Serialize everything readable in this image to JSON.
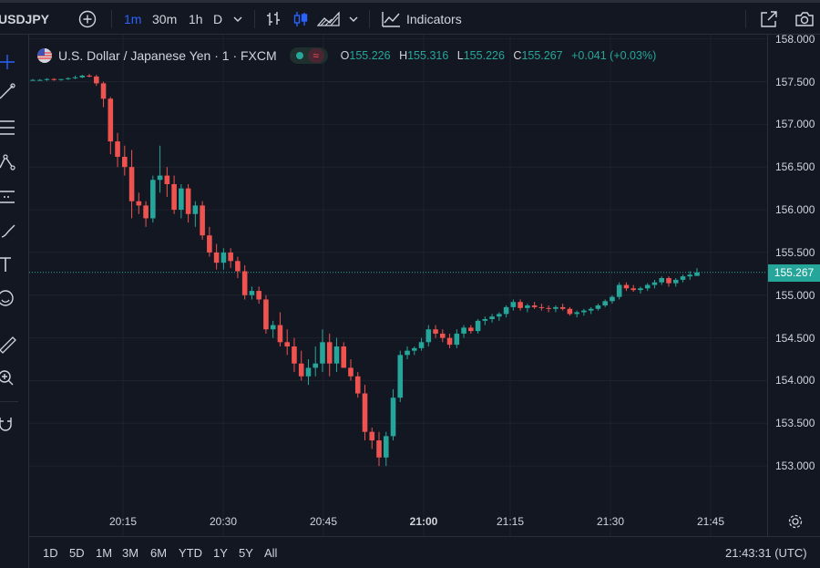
{
  "toolbar": {
    "symbol": "USDJPY",
    "intervals": [
      "1m",
      "30m",
      "1h",
      "D"
    ],
    "active_interval": "1m",
    "indicators_label": "Indicators"
  },
  "legend": {
    "title": "U.S. Dollar / Japanese Yen · 1 · FXCM",
    "open_key": "O",
    "open": "155.226",
    "high_key": "H",
    "high": "155.316",
    "low_key": "L",
    "low": "155.226",
    "close_key": "C",
    "close": "155.267",
    "change": "+0.041 (+0.03%)"
  },
  "price_axis": {
    "labels": [
      "158.000",
      "157.500",
      "157.000",
      "156.500",
      "156.000",
      "155.500",
      "155.000",
      "154.500",
      "154.000",
      "153.500",
      "153.000"
    ],
    "current_price": "155.267"
  },
  "time_axis": {
    "labels": [
      "20:15",
      "20:30",
      "20:45",
      "21:00",
      "21:15",
      "21:30",
      "21:45"
    ],
    "bold_label": "21:00"
  },
  "bottom": {
    "ranges": [
      "1D",
      "5D",
      "1M",
      "3M",
      "6M",
      "YTD",
      "1Y",
      "5Y",
      "All"
    ],
    "clock": "21:43:31 (UTC)"
  },
  "colors": {
    "up": "#26a69a",
    "down": "#ef5350",
    "bg": "#131722",
    "grid": "#1e222d",
    "accent": "#2962ff"
  },
  "icons": {
    "top": [
      "plus-circle-icon",
      "chevron-down-icon",
      "bar-style-icon",
      "candle-style-icon",
      "area-style-icon",
      "indicators-icon",
      "fullscreen-icon",
      "camera-icon"
    ],
    "left": [
      "crosshair-icon",
      "trend-line-icon",
      "fib-icon",
      "pattern-icon",
      "forecast-icon",
      "brush-icon",
      "text-icon",
      "emoji-icon",
      "ruler-icon",
      "zoom-icon",
      "magnet-icon"
    ]
  },
  "chart_data": {
    "type": "candlestick",
    "ylim": [
      152.5,
      158.05
    ],
    "x_labels": [
      "20:15",
      "20:30",
      "20:45",
      "21:00",
      "21:15",
      "21:30",
      "21:45"
    ],
    "candles": [
      [
        157.52,
        157.53,
        157.51,
        157.52
      ],
      [
        157.52,
        157.53,
        157.51,
        157.52
      ],
      [
        157.52,
        157.54,
        157.51,
        157.53
      ],
      [
        157.53,
        157.54,
        157.51,
        157.52
      ],
      [
        157.52,
        157.53,
        157.51,
        157.53
      ],
      [
        157.53,
        157.55,
        157.52,
        157.54
      ],
      [
        157.54,
        157.57,
        157.53,
        157.55
      ],
      [
        157.55,
        157.58,
        157.54,
        157.57
      ],
      [
        157.57,
        157.59,
        157.55,
        157.56
      ],
      [
        157.56,
        157.58,
        157.45,
        157.48
      ],
      [
        157.48,
        157.5,
        157.2,
        157.3
      ],
      [
        157.3,
        157.32,
        156.65,
        156.8
      ],
      [
        156.8,
        156.9,
        156.5,
        156.62
      ],
      [
        156.62,
        156.75,
        156.4,
        156.5
      ],
      [
        156.5,
        156.7,
        155.9,
        156.1
      ],
      [
        156.1,
        156.2,
        155.95,
        156.05
      ],
      [
        156.05,
        156.1,
        155.8,
        155.9
      ],
      [
        155.9,
        156.4,
        155.85,
        156.35
      ],
      [
        156.35,
        156.75,
        156.2,
        156.4
      ],
      [
        156.4,
        156.5,
        156.15,
        156.3
      ],
      [
        156.3,
        156.4,
        155.95,
        156.0
      ],
      [
        156.0,
        156.3,
        155.9,
        156.25
      ],
      [
        156.25,
        156.3,
        155.85,
        155.95
      ],
      [
        155.95,
        156.1,
        155.8,
        156.05
      ],
      [
        156.05,
        156.1,
        155.65,
        155.7
      ],
      [
        155.7,
        155.8,
        155.45,
        155.5
      ],
      [
        155.5,
        155.6,
        155.3,
        155.38
      ],
      [
        155.38,
        155.55,
        155.3,
        155.5
      ],
      [
        155.5,
        155.55,
        155.32,
        155.4
      ],
      [
        155.4,
        155.45,
        155.2,
        155.28
      ],
      [
        155.28,
        155.35,
        154.95,
        155.0
      ],
      [
        155.0,
        155.1,
        154.95,
        155.05
      ],
      [
        155.05,
        155.1,
        154.9,
        154.95
      ],
      [
        154.95,
        155.0,
        154.55,
        154.6
      ],
      [
        154.6,
        154.7,
        154.5,
        154.65
      ],
      [
        154.65,
        154.8,
        154.4,
        154.45
      ],
      [
        154.45,
        154.6,
        154.3,
        154.4
      ],
      [
        154.4,
        154.5,
        154.1,
        154.2
      ],
      [
        154.2,
        154.35,
        154.0,
        154.05
      ],
      [
        154.05,
        154.25,
        153.95,
        154.15
      ],
      [
        154.15,
        154.4,
        154.05,
        154.2
      ],
      [
        154.2,
        154.6,
        154.1,
        154.45
      ],
      [
        154.45,
        154.55,
        154.05,
        154.2
      ],
      [
        154.2,
        154.5,
        154.1,
        154.4
      ],
      [
        154.4,
        154.45,
        154.15,
        154.15
      ],
      [
        154.15,
        154.25,
        154.0,
        154.05
      ],
      [
        154.05,
        154.1,
        153.8,
        153.85
      ],
      [
        153.85,
        153.95,
        153.3,
        153.4
      ],
      [
        153.4,
        153.45,
        153.2,
        153.3
      ],
      [
        153.3,
        153.4,
        153.0,
        153.1
      ],
      [
        153.1,
        153.4,
        153.0,
        153.35
      ],
      [
        153.35,
        153.9,
        153.3,
        153.8
      ],
      [
        153.8,
        154.35,
        153.75,
        154.3
      ],
      [
        154.3,
        154.4,
        154.25,
        154.35
      ],
      [
        154.35,
        154.4,
        154.3,
        154.38
      ],
      [
        154.38,
        154.5,
        154.35,
        154.45
      ],
      [
        154.45,
        154.65,
        154.4,
        154.6
      ],
      [
        154.6,
        154.65,
        154.5,
        154.55
      ],
      [
        154.55,
        154.6,
        154.45,
        154.5
      ],
      [
        154.5,
        154.55,
        154.38,
        154.42
      ],
      [
        154.42,
        154.6,
        154.38,
        154.55
      ],
      [
        154.55,
        154.65,
        154.5,
        154.62
      ],
      [
        154.62,
        154.65,
        154.55,
        154.58
      ],
      [
        154.58,
        154.72,
        154.55,
        154.7
      ],
      [
        154.7,
        154.75,
        154.65,
        154.72
      ],
      [
        154.72,
        154.78,
        154.68,
        154.75
      ],
      [
        154.75,
        154.8,
        154.7,
        154.78
      ],
      [
        154.78,
        154.88,
        154.74,
        154.86
      ],
      [
        154.86,
        154.95,
        154.82,
        154.92
      ],
      [
        154.92,
        154.95,
        154.82,
        154.85
      ],
      [
        154.85,
        154.9,
        154.8,
        154.88
      ],
      [
        154.88,
        154.92,
        154.84,
        154.86
      ],
      [
        154.86,
        154.9,
        154.82,
        154.85
      ],
      [
        154.85,
        154.88,
        154.8,
        154.84
      ],
      [
        154.84,
        154.88,
        154.8,
        154.86
      ],
      [
        154.86,
        154.9,
        154.82,
        154.84
      ],
      [
        154.84,
        154.86,
        154.76,
        154.78
      ],
      [
        154.78,
        154.82,
        154.74,
        154.8
      ],
      [
        154.8,
        154.84,
        154.76,
        154.82
      ],
      [
        154.82,
        154.86,
        154.78,
        154.84
      ],
      [
        154.84,
        154.9,
        154.82,
        154.88
      ],
      [
        154.88,
        154.95,
        154.86,
        154.93
      ],
      [
        154.93,
        155.0,
        154.9,
        154.98
      ],
      [
        154.98,
        155.15,
        154.95,
        155.12
      ],
      [
        155.12,
        155.15,
        155.05,
        155.08
      ],
      [
        155.08,
        155.12,
        155.04,
        155.06
      ],
      [
        155.06,
        155.1,
        155.02,
        155.08
      ],
      [
        155.08,
        155.14,
        155.05,
        155.12
      ],
      [
        155.12,
        155.18,
        155.08,
        155.15
      ],
      [
        155.15,
        155.22,
        155.12,
        155.2
      ],
      [
        155.2,
        155.22,
        155.1,
        155.14
      ],
      [
        155.14,
        155.2,
        155.1,
        155.18
      ],
      [
        155.18,
        155.24,
        155.15,
        155.22
      ],
      [
        155.22,
        155.28,
        155.18,
        155.24
      ],
      [
        155.226,
        155.316,
        155.226,
        155.267
      ]
    ]
  }
}
